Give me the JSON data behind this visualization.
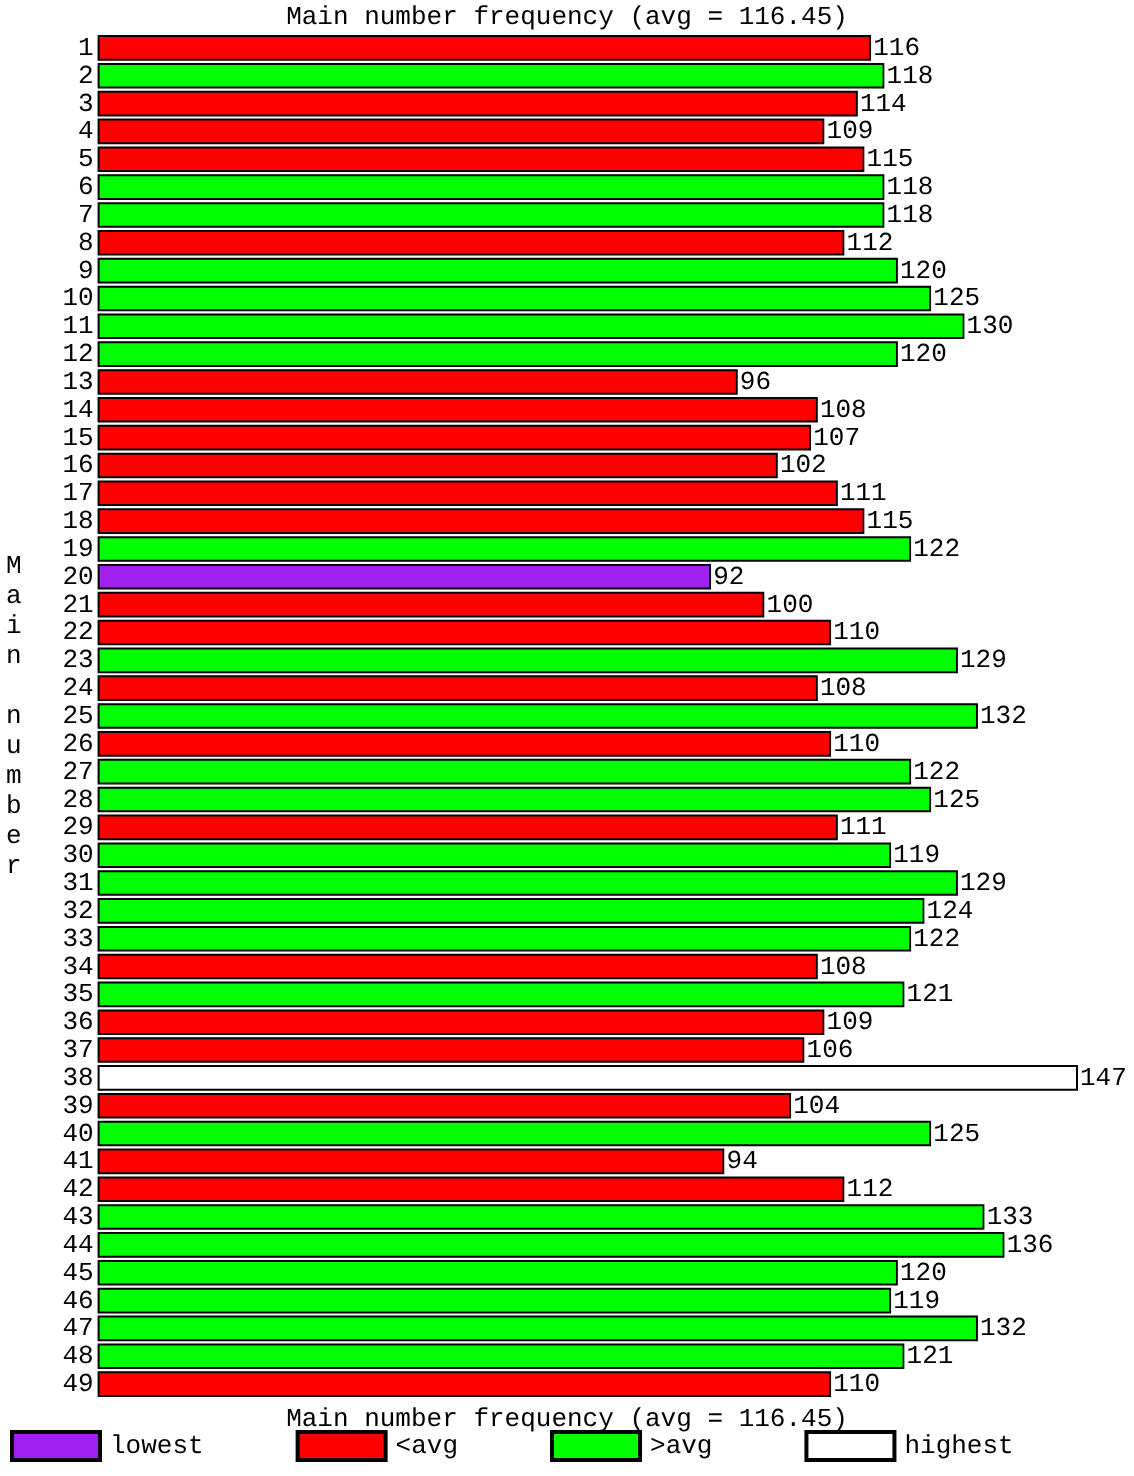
{
  "chart_data": {
    "type": "bar",
    "orientation": "horizontal",
    "stacked": true,
    "title": "Main number frequency (avg = 116.45)",
    "ylabel": "Main number",
    "annotations": [
      "Main number frequency (avg = 116.45)"
    ],
    "categories": [
      "1",
      "2",
      "3",
      "4",
      "5",
      "6",
      "7",
      "8",
      "9",
      "10",
      "11",
      "12",
      "13",
      "14",
      "15",
      "16",
      "17",
      "18",
      "19",
      "20",
      "21",
      "22",
      "23",
      "24",
      "25",
      "26",
      "27",
      "28",
      "29",
      "30",
      "31",
      "32",
      "33",
      "34",
      "35",
      "36",
      "37",
      "38",
      "39",
      "40",
      "41",
      "42",
      "43",
      "44",
      "45",
      "46",
      "47",
      "48",
      "49"
    ],
    "series": [
      {
        "name": "lowest",
        "color": "#a020f0",
        "values": [
          null,
          null,
          null,
          null,
          null,
          null,
          null,
          null,
          null,
          null,
          null,
          null,
          null,
          null,
          null,
          null,
          null,
          null,
          null,
          92,
          null,
          null,
          null,
          null,
          null,
          null,
          null,
          null,
          null,
          null,
          null,
          null,
          null,
          null,
          null,
          null,
          null,
          null,
          null,
          null,
          null,
          null,
          null,
          null,
          null,
          null,
          null,
          null,
          null
        ]
      },
      {
        "name": "<avg",
        "color": "#ff0000",
        "values": [
          116,
          null,
          114,
          109,
          115,
          null,
          null,
          112,
          null,
          null,
          null,
          null,
          96,
          108,
          107,
          102,
          111,
          115,
          null,
          null,
          100,
          110,
          null,
          108,
          null,
          110,
          null,
          null,
          111,
          null,
          null,
          null,
          null,
          108,
          null,
          109,
          106,
          null,
          104,
          null,
          94,
          112,
          null,
          null,
          null,
          null,
          null,
          null,
          110
        ]
      },
      {
        "name": ">avg",
        "color": "#00ff00",
        "values": [
          null,
          118,
          null,
          null,
          null,
          118,
          118,
          null,
          120,
          125,
          130,
          120,
          null,
          null,
          null,
          null,
          null,
          null,
          122,
          null,
          null,
          null,
          129,
          null,
          132,
          null,
          122,
          125,
          null,
          119,
          129,
          124,
          122,
          null,
          121,
          null,
          null,
          null,
          null,
          125,
          null,
          null,
          133,
          136,
          120,
          119,
          132,
          121,
          null
        ]
      },
      {
        "name": "highest",
        "color": "#ffffff",
        "values": [
          null,
          null,
          null,
          null,
          null,
          null,
          null,
          null,
          null,
          null,
          null,
          null,
          null,
          null,
          null,
          null,
          null,
          null,
          null,
          null,
          null,
          null,
          null,
          null,
          null,
          null,
          null,
          null,
          null,
          null,
          null,
          null,
          null,
          null,
          null,
          null,
          null,
          147,
          null,
          null,
          null,
          null,
          null,
          null,
          null,
          null,
          null,
          null,
          null
        ]
      }
    ],
    "data_labels": true,
    "tick_labels": "y",
    "grid": false,
    "legend": "bottom"
  }
}
